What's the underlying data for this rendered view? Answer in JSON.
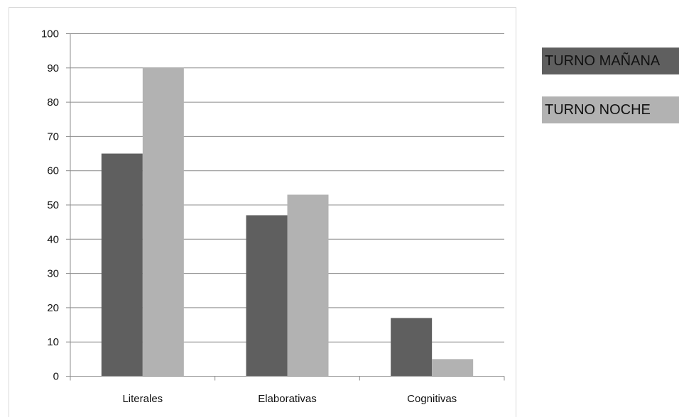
{
  "chart_data": {
    "type": "bar",
    "categories": [
      "Literales",
      "Elaborativas",
      "Cognitivas"
    ],
    "series": [
      {
        "name": "TURNO MAÑANA",
        "values": [
          65,
          47,
          17
        ],
        "color": "#5f5f5f"
      },
      {
        "name": "TURNO NOCHE",
        "values": [
          90,
          53,
          5
        ],
        "color": "#b2b2b2"
      }
    ],
    "ylim": [
      0,
      100
    ],
    "yticks": [
      0,
      10,
      20,
      30,
      40,
      50,
      60,
      70,
      80,
      90,
      100
    ],
    "grid": true,
    "legend_position": "right",
    "title": "",
    "xlabel": "",
    "ylabel": ""
  }
}
